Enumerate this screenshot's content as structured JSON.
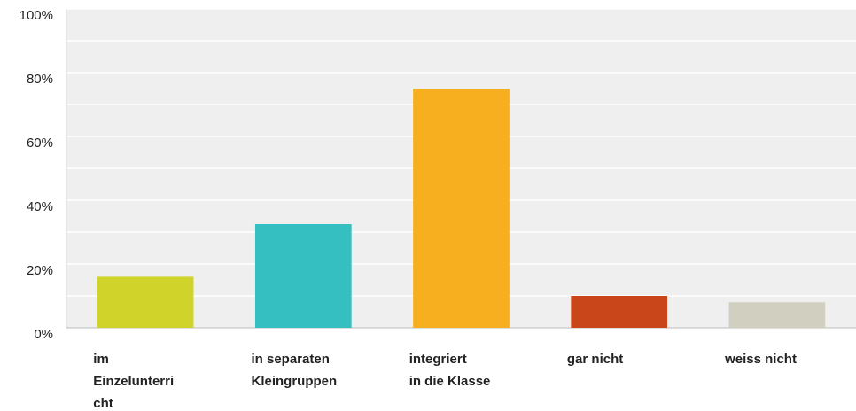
{
  "chart_data": {
    "type": "bar",
    "categories": [
      [
        "im",
        "Einzelunterri",
        "cht"
      ],
      [
        "in separaten",
        "Kleingruppen"
      ],
      [
        "integriert",
        "in die Klasse"
      ],
      [
        "gar nicht"
      ],
      [
        "weiss nicht"
      ]
    ],
    "values": [
      16,
      32.5,
      75,
      10,
      8
    ],
    "colors": [
      "#d0d42a",
      "#35bfc1",
      "#f7af20",
      "#c9461a",
      "#d0cfc0"
    ],
    "ylim": [
      0,
      100
    ],
    "yticks": [
      {
        "value": 0,
        "label": "0%"
      },
      {
        "value": 20,
        "label": "20%"
      },
      {
        "value": 40,
        "label": "40%"
      },
      {
        "value": 60,
        "label": "60%"
      },
      {
        "value": 80,
        "label": "80%"
      },
      {
        "value": 100,
        "label": "100%"
      }
    ],
    "minor_yticks": [
      10,
      30,
      50,
      70,
      90
    ],
    "grid": true
  }
}
